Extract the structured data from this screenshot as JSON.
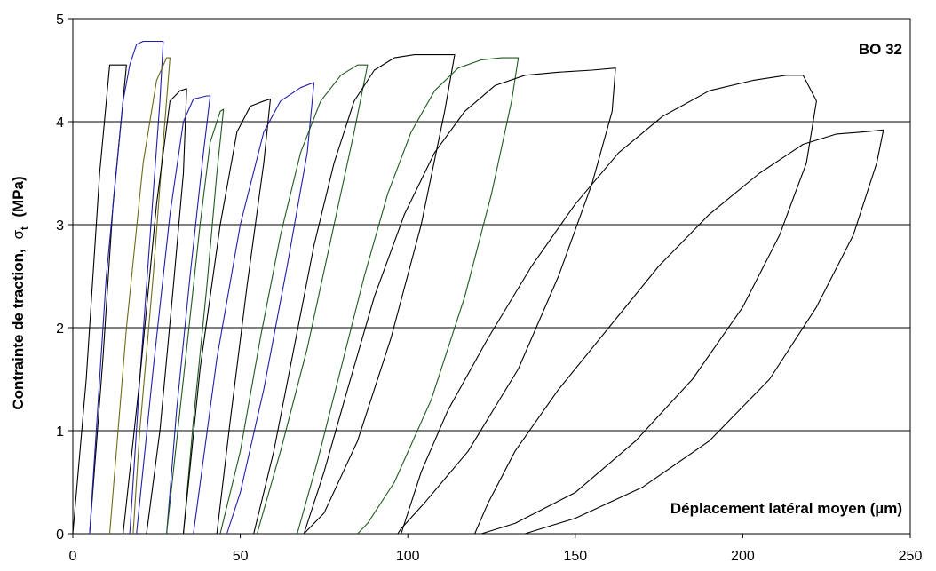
{
  "chart_data": {
    "type": "line",
    "ylabel_main": "Contrainte de traction,",
    "ylabel_symbol": "σ",
    "ylabel_sub": "t",
    "ylabel_unit": "(MPa)",
    "xlabel": "Déplacement latéral moyen (µm)",
    "annotation": "BO 32",
    "xlim": [
      0,
      250
    ],
    "ylim": [
      0,
      5
    ],
    "xticks": [
      0,
      50,
      100,
      150,
      200,
      250
    ],
    "yticks": [
      0,
      1,
      2,
      3,
      4,
      5
    ],
    "grid": "horizontal",
    "colors": {
      "black": "#000000",
      "blue": "#1f1fa8",
      "olive": "#6b6b1a",
      "green": "#1e5a1e"
    },
    "series": [
      {
        "color": "black",
        "points": [
          [
            0,
            0
          ],
          [
            4,
            1.5
          ],
          [
            8,
            3.5
          ],
          [
            11,
            4.55
          ],
          [
            15,
            4.55
          ],
          [
            16,
            4.55
          ],
          [
            12,
            3.2
          ],
          [
            9,
            1.7
          ],
          [
            5,
            0
          ]
        ]
      },
      {
        "color": "blue",
        "points": [
          [
            5,
            0
          ],
          [
            10,
            2.5
          ],
          [
            15,
            4.2
          ],
          [
            17,
            4.55
          ],
          [
            19,
            4.75
          ],
          [
            21,
            4.78
          ],
          [
            24,
            4.78
          ],
          [
            27,
            4.78
          ],
          [
            26,
            4.2
          ],
          [
            24,
            3.3
          ],
          [
            20,
            1.5
          ],
          [
            17,
            0
          ]
        ]
      },
      {
        "color": "olive",
        "points": [
          [
            11,
            0
          ],
          [
            16,
            2.0
          ],
          [
            21,
            3.6
          ],
          [
            25,
            4.4
          ],
          [
            28,
            4.62
          ],
          [
            29,
            4.62
          ],
          [
            27,
            3.8
          ],
          [
            24,
            2.5
          ],
          [
            20,
            1.0
          ],
          [
            18,
            0
          ]
        ]
      },
      {
        "color": "black",
        "points": [
          [
            15,
            0
          ],
          [
            20,
            1.5
          ],
          [
            25,
            3.2
          ],
          [
            29,
            4.2
          ],
          [
            32,
            4.3
          ],
          [
            34,
            4.32
          ],
          [
            33,
            3.5
          ],
          [
            30,
            2.4
          ],
          [
            26,
            1.0
          ],
          [
            22,
            0
          ]
        ]
      },
      {
        "color": "blue",
        "points": [
          [
            19,
            0
          ],
          [
            24,
            1.6
          ],
          [
            29,
            3.1
          ],
          [
            33,
            4.0
          ],
          [
            36,
            4.22
          ],
          [
            40,
            4.25
          ],
          [
            41,
            4.25
          ],
          [
            39,
            3.7
          ],
          [
            35,
            2.5
          ],
          [
            31,
            1.2
          ],
          [
            28,
            0
          ]
        ]
      },
      {
        "color": "green",
        "points": [
          [
            28,
            0
          ],
          [
            33,
            1.5
          ],
          [
            38,
            3.0
          ],
          [
            41,
            3.8
          ],
          [
            44,
            4.1
          ],
          [
            45,
            4.12
          ],
          [
            43,
            3.5
          ],
          [
            40,
            2.4
          ],
          [
            36,
            1.1
          ],
          [
            33,
            0
          ]
        ]
      },
      {
        "color": "black",
        "points": [
          [
            33,
            0
          ],
          [
            38,
            1.6
          ],
          [
            44,
            3.0
          ],
          [
            49,
            3.9
          ],
          [
            53,
            4.15
          ],
          [
            57,
            4.2
          ],
          [
            59,
            4.22
          ],
          [
            57,
            3.6
          ],
          [
            52,
            2.4
          ],
          [
            47,
            1.1
          ],
          [
            43,
            0
          ]
        ]
      },
      {
        "color": "blue",
        "points": [
          [
            36,
            0
          ],
          [
            43,
            1.7
          ],
          [
            50,
            3.0
          ],
          [
            57,
            3.9
          ],
          [
            62,
            4.2
          ],
          [
            68,
            4.33
          ],
          [
            72,
            4.38
          ],
          [
            70,
            3.7
          ],
          [
            64,
            2.6
          ],
          [
            57,
            1.4
          ],
          [
            50,
            0.4
          ],
          [
            46,
            0
          ]
        ]
      },
      {
        "color": "green",
        "points": [
          [
            44,
            0
          ],
          [
            50,
            0.8
          ],
          [
            56,
            1.9
          ],
          [
            62,
            2.9
          ],
          [
            68,
            3.7
          ],
          [
            74,
            4.2
          ],
          [
            80,
            4.45
          ],
          [
            85,
            4.55
          ],
          [
            88,
            4.55
          ],
          [
            84,
            3.9
          ],
          [
            78,
            3.0
          ],
          [
            70,
            1.8
          ],
          [
            62,
            0.8
          ],
          [
            55,
            0
          ]
        ]
      },
      {
        "color": "black",
        "points": [
          [
            54,
            0
          ],
          [
            60,
            0.8
          ],
          [
            66,
            1.8
          ],
          [
            72,
            2.8
          ],
          [
            78,
            3.6
          ],
          [
            84,
            4.2
          ],
          [
            90,
            4.5
          ],
          [
            96,
            4.62
          ],
          [
            102,
            4.65
          ],
          [
            108,
            4.65
          ],
          [
            114,
            4.65
          ],
          [
            111,
            4.1
          ],
          [
            104,
            3.0
          ],
          [
            95,
            1.9
          ],
          [
            85,
            0.9
          ],
          [
            75,
            0.2
          ],
          [
            69,
            0
          ]
        ]
      },
      {
        "color": "green",
        "points": [
          [
            67,
            0
          ],
          [
            73,
            0.7
          ],
          [
            80,
            1.6
          ],
          [
            87,
            2.5
          ],
          [
            94,
            3.3
          ],
          [
            101,
            3.9
          ],
          [
            108,
            4.3
          ],
          [
            115,
            4.52
          ],
          [
            122,
            4.6
          ],
          [
            128,
            4.62
          ],
          [
            133,
            4.62
          ],
          [
            131,
            4.2
          ],
          [
            125,
            3.3
          ],
          [
            117,
            2.3
          ],
          [
            107,
            1.3
          ],
          [
            96,
            0.5
          ],
          [
            88,
            0.1
          ],
          [
            85,
            0
          ]
        ]
      },
      {
        "color": "black",
        "points": [
          [
            69,
            0
          ],
          [
            75,
            0.6
          ],
          [
            82,
            1.4
          ],
          [
            90,
            2.3
          ],
          [
            99,
            3.1
          ],
          [
            108,
            3.7
          ],
          [
            117,
            4.1
          ],
          [
            126,
            4.35
          ],
          [
            135,
            4.45
          ],
          [
            145,
            4.48
          ],
          [
            155,
            4.5
          ],
          [
            162,
            4.52
          ],
          [
            161,
            4.1
          ],
          [
            155,
            3.4
          ],
          [
            145,
            2.5
          ],
          [
            133,
            1.6
          ],
          [
            118,
            0.8
          ],
          [
            105,
            0.3
          ],
          [
            98,
            0.05
          ],
          [
            97,
            0
          ]
        ]
      },
      {
        "color": "black",
        "points": [
          [
            98,
            0
          ],
          [
            104,
            0.6
          ],
          [
            112,
            1.2
          ],
          [
            124,
            1.9
          ],
          [
            137,
            2.6
          ],
          [
            150,
            3.2
          ],
          [
            163,
            3.7
          ],
          [
            176,
            4.05
          ],
          [
            190,
            4.3
          ],
          [
            203,
            4.4
          ],
          [
            213,
            4.45
          ],
          [
            218,
            4.45
          ],
          [
            222,
            4.2
          ],
          [
            219,
            3.6
          ],
          [
            211,
            2.9
          ],
          [
            200,
            2.2
          ],
          [
            185,
            1.5
          ],
          [
            168,
            0.9
          ],
          [
            150,
            0.4
          ],
          [
            132,
            0.1
          ],
          [
            122,
            0
          ]
        ]
      },
      {
        "color": "black",
        "points": [
          [
            120,
            0
          ],
          [
            124,
            0.3
          ],
          [
            132,
            0.8
          ],
          [
            145,
            1.4
          ],
          [
            160,
            2.0
          ],
          [
            175,
            2.6
          ],
          [
            190,
            3.1
          ],
          [
            205,
            3.5
          ],
          [
            218,
            3.78
          ],
          [
            228,
            3.88
          ],
          [
            236,
            3.9
          ],
          [
            242,
            3.92
          ],
          [
            240,
            3.6
          ],
          [
            233,
            2.9
          ],
          [
            222,
            2.2
          ],
          [
            208,
            1.5
          ],
          [
            190,
            0.9
          ],
          [
            170,
            0.45
          ],
          [
            150,
            0.15
          ],
          [
            135,
            0
          ]
        ]
      }
    ]
  }
}
